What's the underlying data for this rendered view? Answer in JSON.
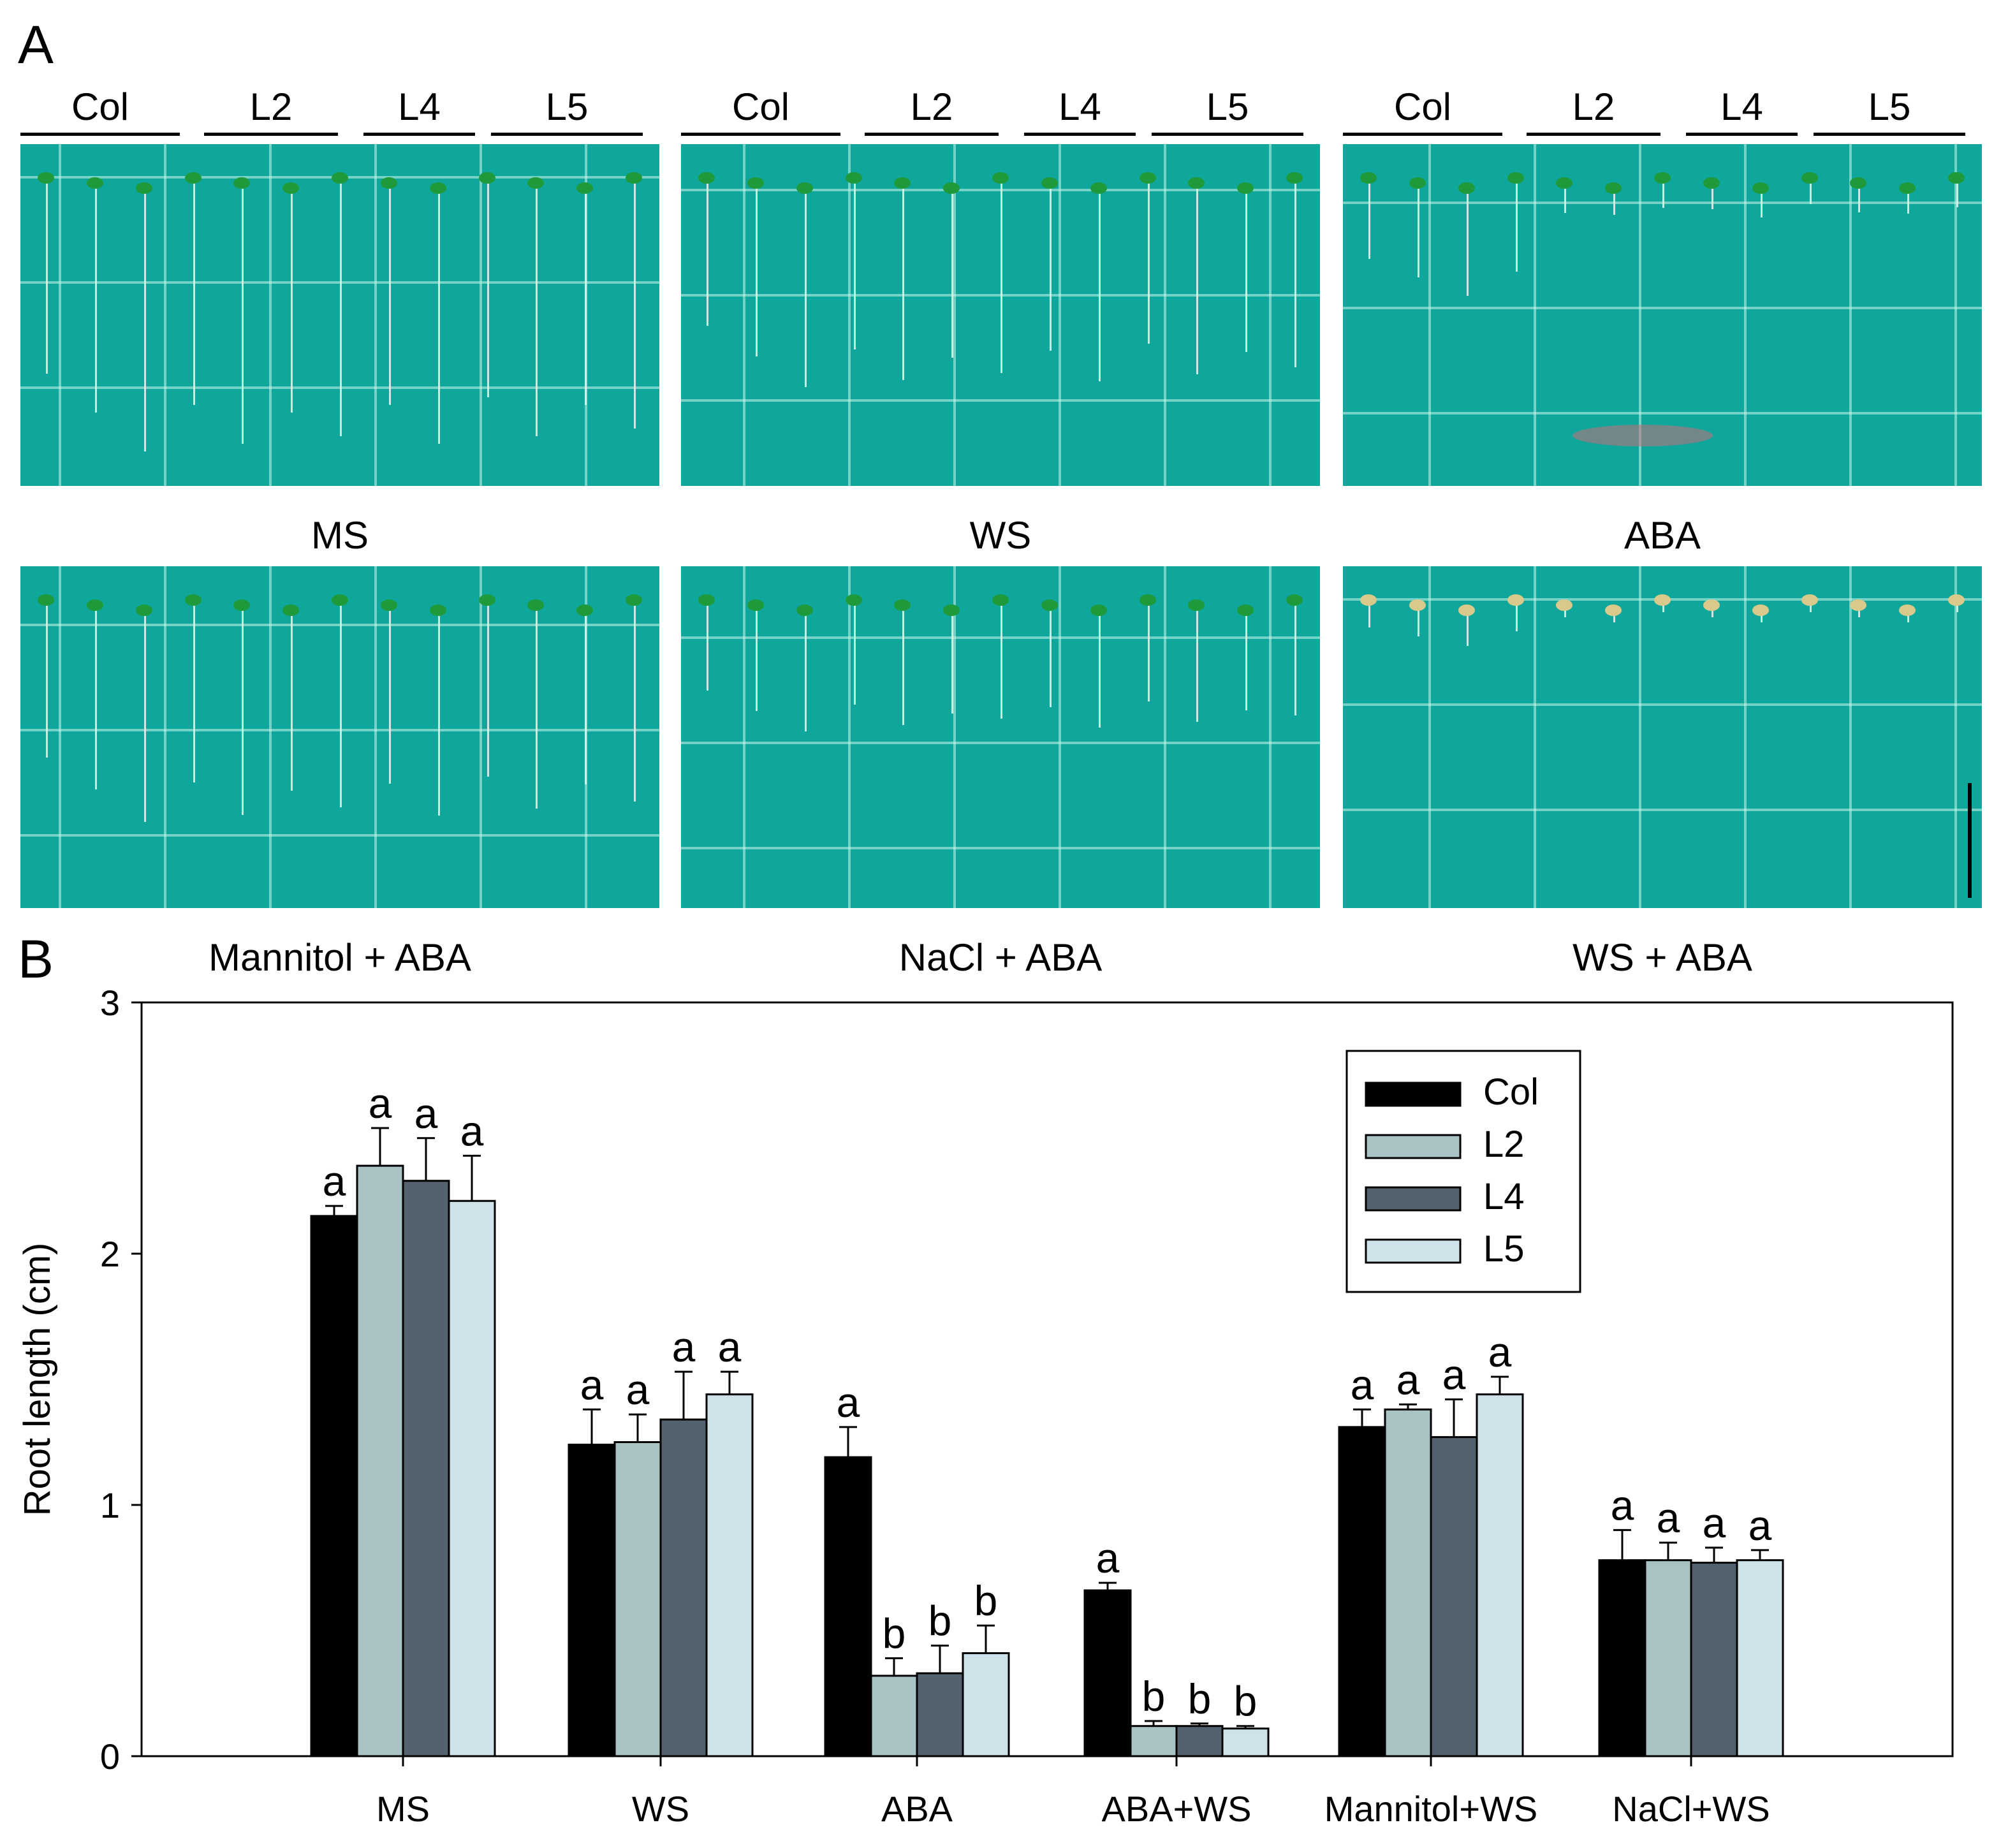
{
  "panel_a": {
    "letter": "A",
    "group_labels": [
      "Col",
      "L2",
      "L4",
      "L5"
    ],
    "top_row": [
      "MS",
      "WS",
      "ABA"
    ],
    "bottom_row": [
      "Mannitol + ABA",
      "NaCl + ABA",
      "WS + ABA"
    ]
  },
  "panel_b": {
    "letter": "B"
  },
  "colors": {
    "Col": "#000000",
    "L2": "#a9c3c5",
    "L4": "#53626e",
    "L5": "#cfe2ea",
    "plate": "#0fa79c"
  },
  "chart_data": {
    "type": "bar",
    "ylabel": "Root length (cm)",
    "xlabel": "",
    "ylim": [
      0,
      3
    ],
    "yticks": [
      "0",
      "1",
      "2",
      "3"
    ],
    "categories": [
      "MS",
      "WS",
      "ABA",
      "ABA+WS",
      "Mannitol+WS",
      "NaCl+WS"
    ],
    "legend_position": "top-right",
    "series": [
      {
        "name": "Col",
        "values": [
          2.15,
          1.24,
          1.19,
          0.66,
          1.31,
          0.78
        ],
        "errors": [
          0.04,
          0.14,
          0.12,
          0.03,
          0.07,
          0.12
        ],
        "letters": [
          "a",
          "a",
          "a",
          "a",
          "a",
          "a"
        ]
      },
      {
        "name": "L2",
        "values": [
          2.35,
          1.25,
          0.32,
          0.12,
          1.38,
          0.78
        ],
        "errors": [
          0.15,
          0.11,
          0.07,
          0.02,
          0.02,
          0.07
        ],
        "letters": [
          "a",
          "a",
          "b",
          "b",
          "a",
          "a"
        ]
      },
      {
        "name": "L4",
        "values": [
          2.29,
          1.34,
          0.33,
          0.12,
          1.27,
          0.77
        ],
        "errors": [
          0.17,
          0.19,
          0.11,
          0.01,
          0.15,
          0.06
        ],
        "letters": [
          "a",
          "a",
          "b",
          "b",
          "a",
          "a"
        ]
      },
      {
        "name": "L5",
        "values": [
          2.21,
          1.44,
          0.41,
          0.11,
          1.44,
          0.78
        ],
        "errors": [
          0.18,
          0.09,
          0.11,
          0.01,
          0.07,
          0.04
        ],
        "letters": [
          "a",
          "a",
          "b",
          "b",
          "a",
          "a"
        ]
      }
    ]
  }
}
